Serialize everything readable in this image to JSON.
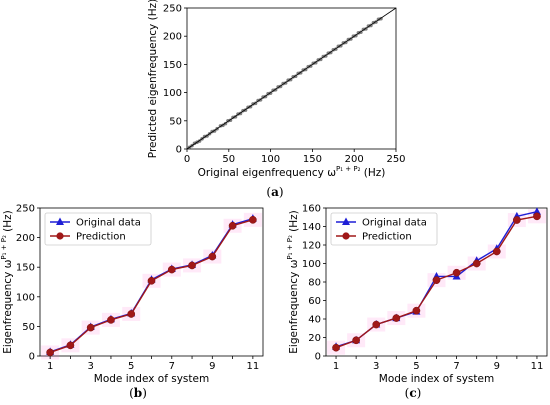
{
  "captions": {
    "a": "a",
    "b": "b",
    "c": "c"
  },
  "chart_data": [
    {
      "id": "a",
      "type": "scatter",
      "xlabel": "Original eigenfrequency ω",
      "xlabel_sup": "P₁ + P₂",
      "xlabel_unit": " (Hz)",
      "ylabel": "Predicted eigenfrequency (Hz)",
      "xlim": [
        0,
        250
      ],
      "ylim": [
        0,
        250
      ],
      "xticks": [
        0,
        50,
        100,
        150,
        200,
        250
      ],
      "yticks": [
        0,
        50,
        100,
        150,
        200,
        250
      ],
      "point_color": "#555555",
      "line_color": "#000000",
      "x": [
        3,
        6,
        9,
        12,
        15,
        18,
        21,
        24,
        27,
        30,
        33,
        36,
        40,
        43,
        46,
        49,
        52,
        55,
        58,
        61,
        64,
        67,
        70,
        73,
        76,
        79,
        82,
        85,
        88,
        91,
        94,
        97,
        100,
        103,
        106,
        109,
        112,
        115,
        118,
        121,
        124,
        127,
        130,
        133,
        136,
        139,
        142,
        145,
        148,
        151,
        154,
        157,
        160,
        163,
        166,
        169,
        172,
        175,
        178,
        181,
        184,
        187,
        190,
        193,
        196,
        199,
        202,
        205,
        208,
        211,
        214,
        217,
        220,
        223,
        226,
        229,
        232
      ],
      "y": [
        3,
        6,
        10,
        12,
        14,
        18,
        22,
        23,
        27,
        31,
        32,
        36,
        41,
        42,
        45,
        50,
        51,
        56,
        57,
        62,
        63,
        68,
        69,
        74,
        75,
        80,
        81,
        86,
        87,
        92,
        93,
        98,
        99,
        104,
        105,
        110,
        111,
        116,
        117,
        122,
        123,
        128,
        129,
        134,
        135,
        140,
        141,
        146,
        147,
        152,
        153,
        158,
        159,
        164,
        165,
        170,
        171,
        176,
        177,
        182,
        183,
        188,
        189,
        194,
        195,
        200,
        201,
        206,
        207,
        212,
        213,
        218,
        219,
        224,
        225,
        230,
        231
      ]
    },
    {
      "id": "b",
      "type": "line",
      "xlabel": "Mode index of system",
      "ylabel": "Eigenfrequency ω",
      "ylabel_sup": "P₁ + P₂",
      "ylabel_unit": " (Hz)",
      "x": [
        1,
        2,
        3,
        4,
        5,
        6,
        7,
        8,
        9,
        10,
        11
      ],
      "xticks": [
        1,
        3,
        5,
        7,
        9,
        11
      ],
      "yticks": [
        0,
        50,
        100,
        150,
        200,
        250
      ],
      "xlim": [
        0.5,
        11.5
      ],
      "ylim": [
        0,
        250
      ],
      "legend": "top-left",
      "series": [
        {
          "name": "Original data",
          "color": "#1f1fd6",
          "marker": "triangle",
          "values": [
            7,
            19,
            49,
            62,
            72,
            129,
            147,
            154,
            170,
            222,
            232
          ]
        },
        {
          "name": "Prediction",
          "color": "#a01818",
          "marker": "circle",
          "values": [
            6,
            18,
            48,
            61,
            71,
            127,
            146,
            153,
            168,
            220,
            230
          ]
        }
      ]
    },
    {
      "id": "c",
      "type": "line",
      "xlabel": "Mode index of system",
      "ylabel": "Eigenfrequency ω",
      "ylabel_sup": "P₁ + P₂",
      "ylabel_unit": " (Hz)",
      "x": [
        1,
        2,
        3,
        4,
        5,
        6,
        7,
        8,
        9,
        10,
        11
      ],
      "xticks": [
        1,
        3,
        5,
        7,
        9,
        11
      ],
      "yticks": [
        0,
        20,
        40,
        60,
        80,
        100,
        120,
        140,
        160
      ],
      "xlim": [
        0.5,
        11.5
      ],
      "ylim": [
        0,
        160
      ],
      "legend": "top-left",
      "series": [
        {
          "name": "Original data",
          "color": "#1f1fd6",
          "marker": "triangle",
          "values": [
            10,
            17,
            34,
            41,
            48,
            86,
            86,
            103,
            116,
            151,
            156
          ]
        },
        {
          "name": "Prediction",
          "color": "#a01818",
          "marker": "circle",
          "values": [
            9,
            17,
            34,
            41,
            49,
            82,
            90,
            100,
            113,
            147,
            151
          ]
        }
      ]
    }
  ]
}
